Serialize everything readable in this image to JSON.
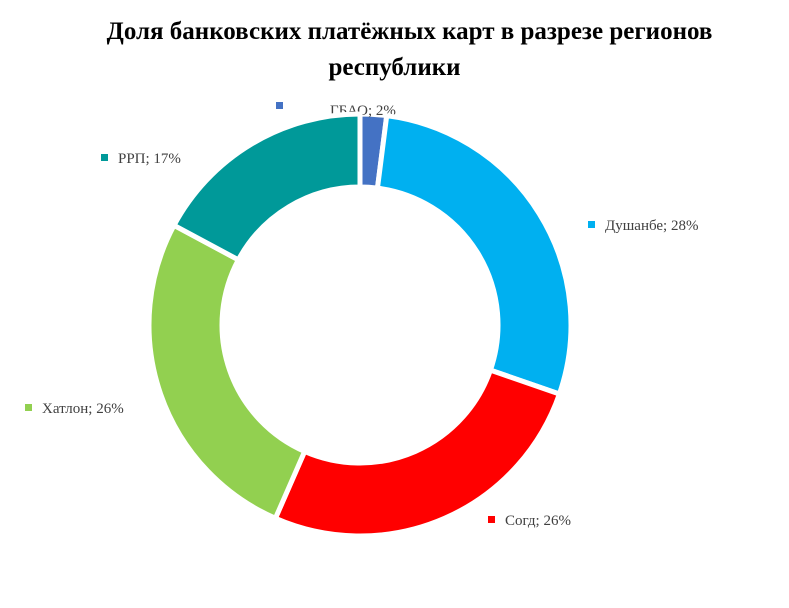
{
  "chart_data": {
    "type": "pie",
    "title_line1": "Доля банковских платёжных карт в разрезе регионов",
    "title_line2": "республики",
    "separator": "; ",
    "slices": [
      {
        "name": "ГБАО",
        "value": 2,
        "label": "2%",
        "color": "#4472C4"
      },
      {
        "name": "Душанбе",
        "value": 28,
        "label": "28%",
        "color": "#00B0F0"
      },
      {
        "name": "Согд",
        "value": 26,
        "label": "26%",
        "color": "#FF0000"
      },
      {
        "name": "Хатлон",
        "value": 26,
        "label": "26%",
        "color": "#92D050"
      },
      {
        "name": "РРП",
        "value": 17,
        "label": "17%",
        "color": "#009999"
      }
    ],
    "donut": true,
    "legend": "none",
    "data_labels": "outside"
  }
}
